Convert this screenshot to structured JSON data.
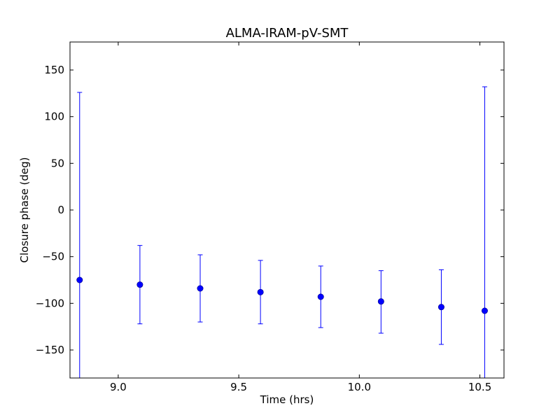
{
  "chart_data": {
    "type": "scatter",
    "title": "ALMA-IRAM-pV-SMT",
    "xlabel": "Time (hrs)",
    "ylabel": "Closure phase (deg)",
    "xlim": [
      8.8,
      10.6
    ],
    "ylim": [
      -180,
      180
    ],
    "xticks": [
      9.0,
      9.5,
      10.0,
      10.5
    ],
    "xtick_labels": [
      "9.0",
      "9.5",
      "10.0",
      "10.5"
    ],
    "yticks": [
      -150,
      -100,
      -50,
      0,
      50,
      100,
      150
    ],
    "ytick_labels": [
      "−150",
      "−100",
      "−50",
      "0",
      "50",
      "100",
      "150"
    ],
    "grid": false,
    "marker_color": "#0000ff",
    "series": [
      {
        "x": [
          8.84,
          9.09,
          9.34,
          9.59,
          9.84,
          10.09,
          10.34,
          10.52
        ],
        "y": [
          -75,
          -80,
          -84,
          -88,
          -93,
          -98,
          -104,
          -108
        ],
        "yerr_lower": [
          -185,
          -122,
          -120,
          -122,
          -126,
          -132,
          -144,
          -185
        ],
        "yerr_upper": [
          126,
          -38,
          -48,
          -54,
          -60,
          -65,
          -64,
          132
        ]
      }
    ]
  }
}
